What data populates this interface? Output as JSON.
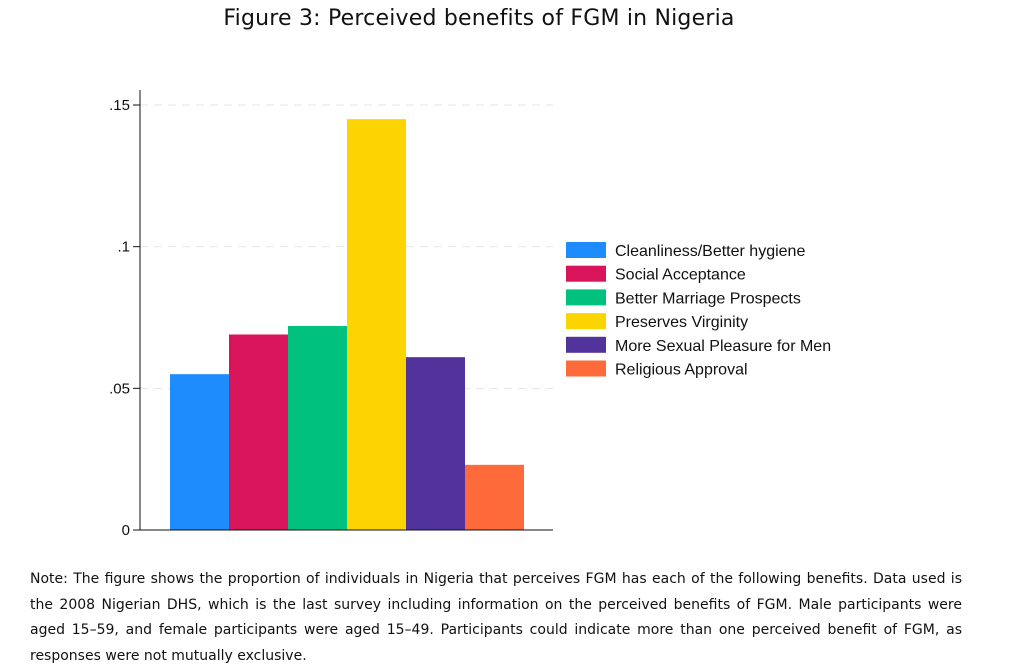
{
  "chart_data": {
    "type": "bar",
    "title": "Figure 3: Perceived benefits of FGM in Nigeria",
    "xlabel": "",
    "ylabel": "",
    "ylim": [
      0,
      0.15
    ],
    "yticks": [
      {
        "value": 0,
        "label": "0"
      },
      {
        "value": 0.05,
        "label": ".05"
      },
      {
        "value": 0.1,
        "label": ".1"
      },
      {
        "value": 0.15,
        "label": ".15"
      }
    ],
    "grid": true,
    "legend_position": "right",
    "series": [
      {
        "name": "Cleanliness/Better hygiene",
        "value": 0.055,
        "color": "#1f8cfd"
      },
      {
        "name": "Social Acceptance",
        "value": 0.069,
        "color": "#d8145a"
      },
      {
        "name": "Better Marriage Prospects",
        "value": 0.072,
        "color": "#00c27e"
      },
      {
        "name": "Preserves Virginity",
        "value": 0.145,
        "color": "#fcd500"
      },
      {
        "name": "More Sexual Pleasure for Men",
        "value": 0.061,
        "color": "#52339b"
      },
      {
        "name": "Religious Approval",
        "value": 0.023,
        "color": "#ff6a3a"
      }
    ]
  },
  "note": "Note: The figure shows the proportion of individuals in Nigeria that perceives FGM has each of the following benefits. Data used is the 2008 Nigerian DHS, which is the last survey including information on the perceived benefits of FGM. Male participants were aged 15–59, and female participants were aged 15–49.  Participants could indicate more than one perceived benefit of FGM, as responses were not mutually exclusive."
}
